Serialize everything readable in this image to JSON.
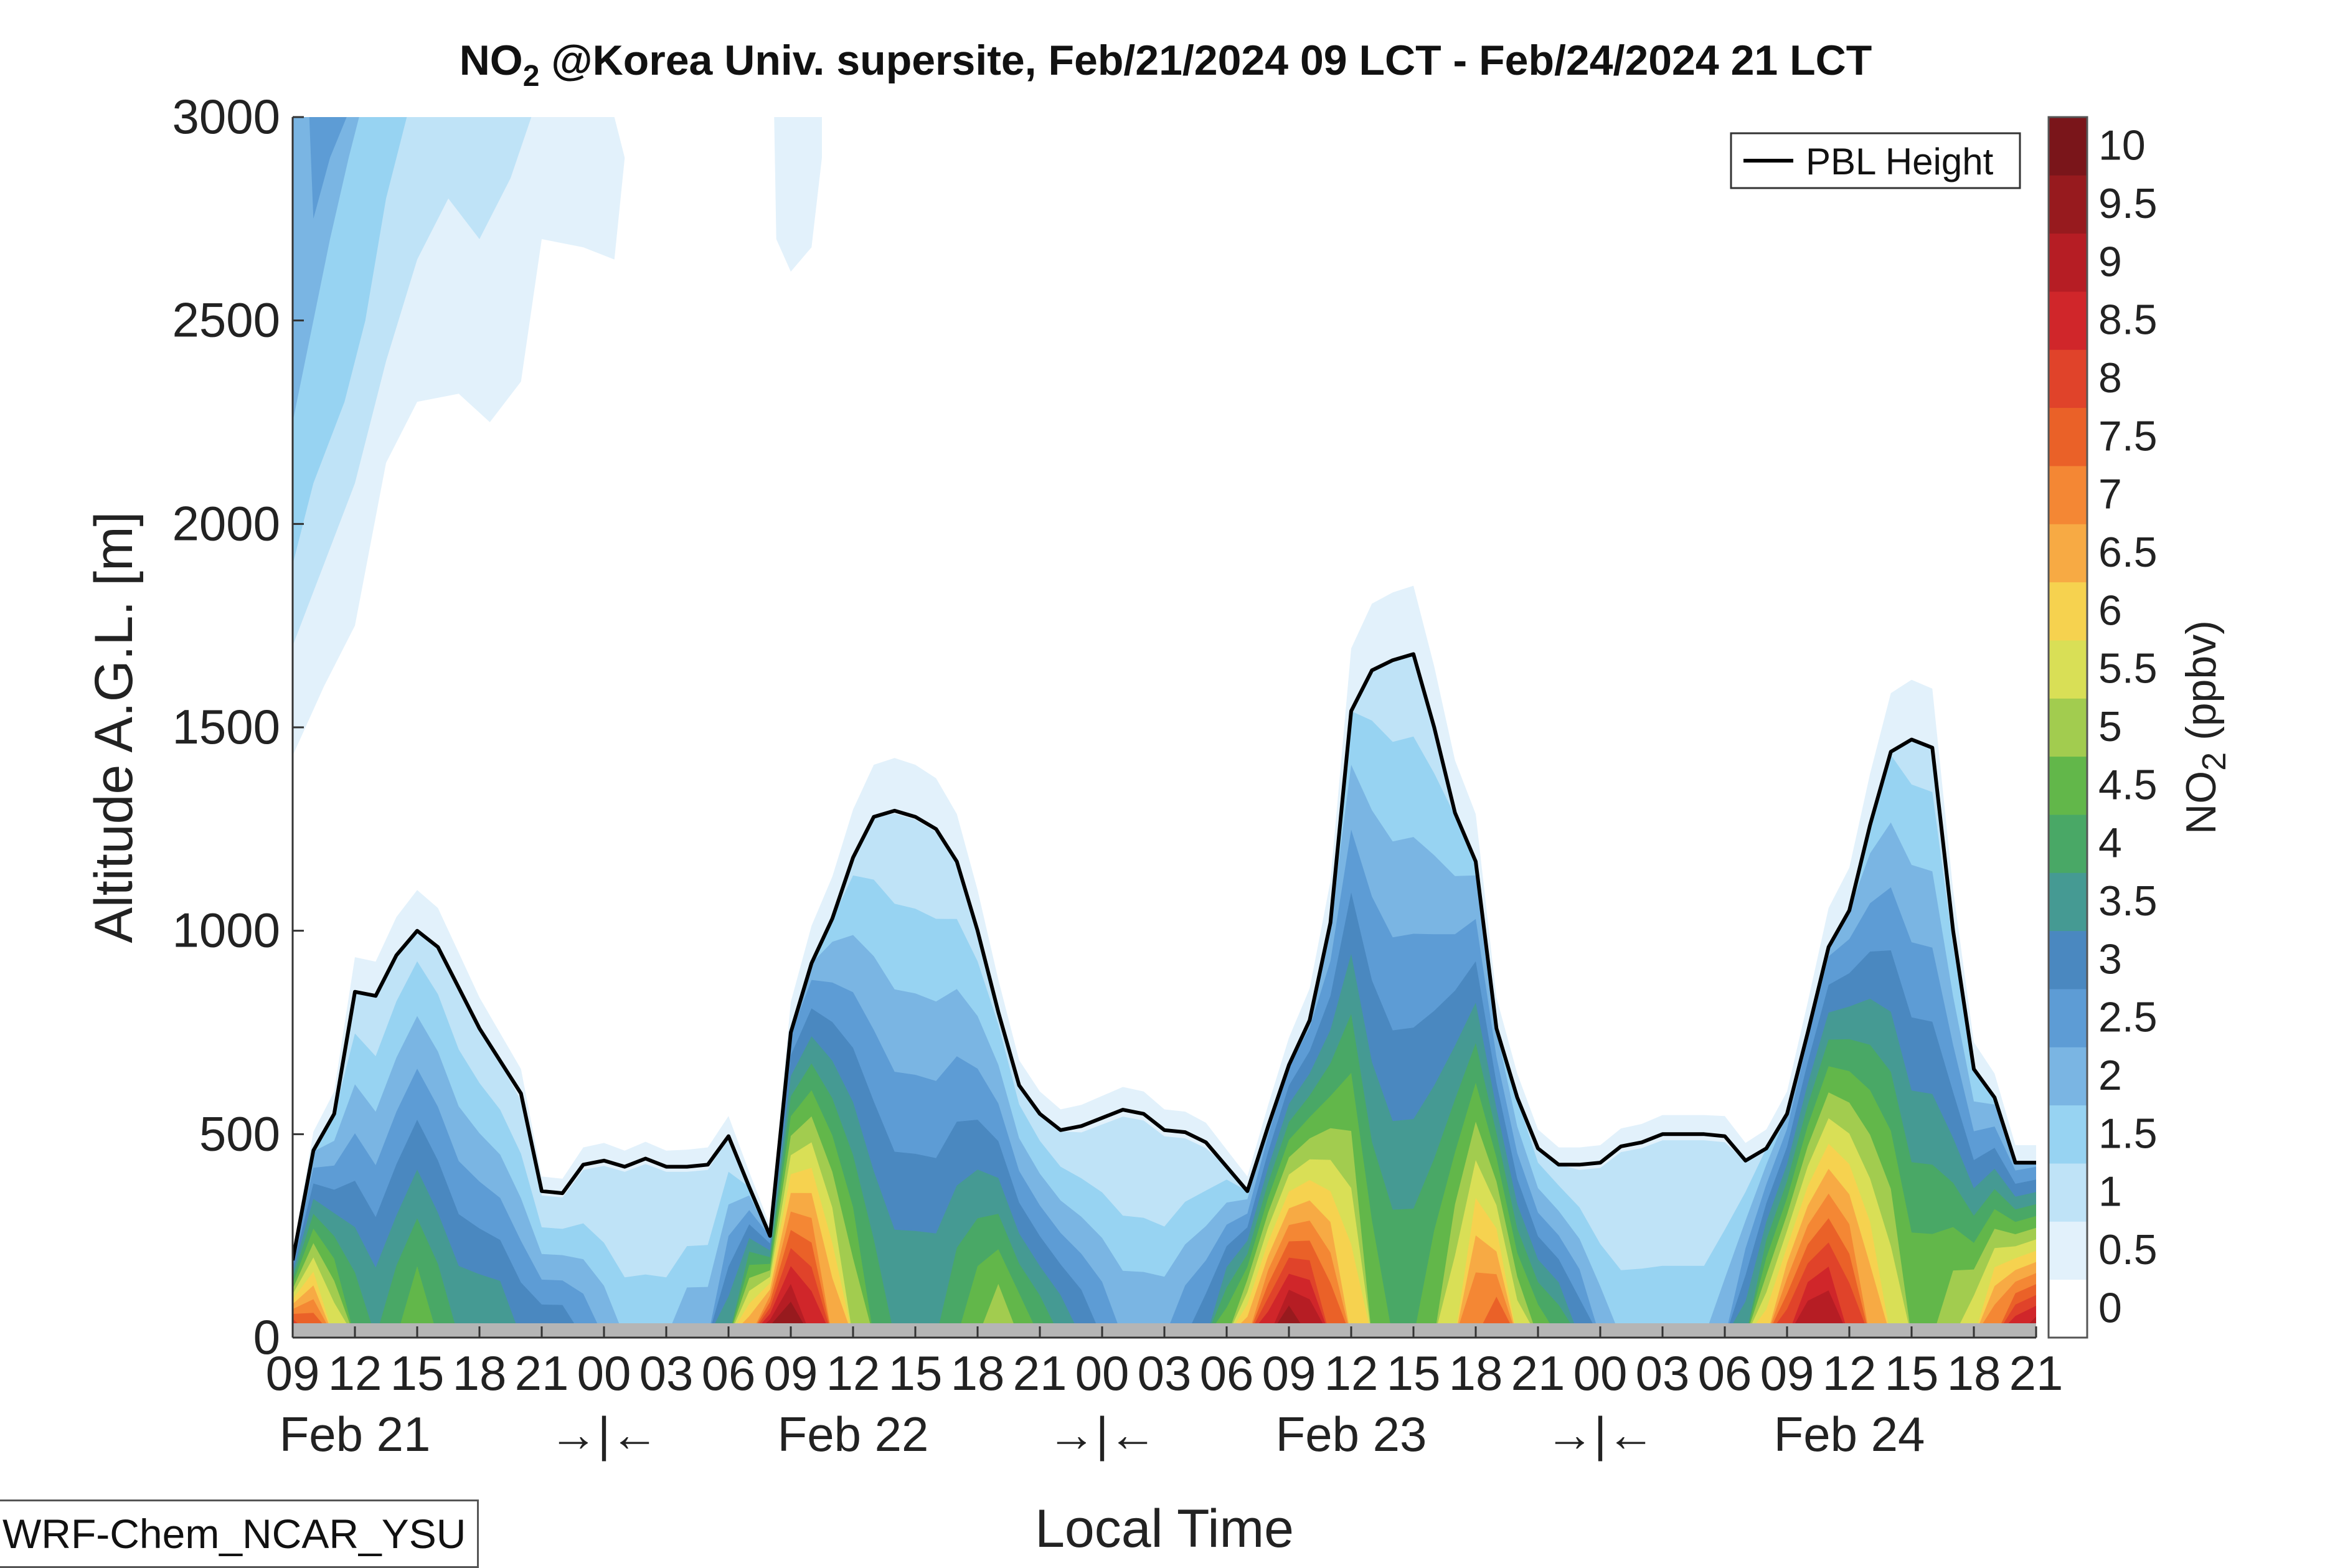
{
  "title": {
    "prefix": "NO",
    "subscript": "2",
    "suffix": " @Korea Univ. supersite, Feb/21/2024 09 LCT - Feb/24/2024 21 LCT"
  },
  "model_label": "WRF-Chem_NCAR_YSU",
  "legend": {
    "label": "PBL Height",
    "placement": "top-right"
  },
  "colorbar": {
    "label_prefix": "NO",
    "label_subscript": "2",
    "label_suffix": " (ppbv)",
    "tick_labels": [
      "0",
      "0.5",
      "1",
      "1.5",
      "2",
      "2.5",
      "3",
      "3.5",
      "4",
      "4.5",
      "5",
      "5.5",
      "6",
      "6.5",
      "7",
      "7.5",
      "8",
      "8.5",
      "9",
      "9.5",
      "10"
    ],
    "colors": [
      "#ffffff",
      "#e2f1fb",
      "#bfe3f7",
      "#97d3f2",
      "#7ab5e3",
      "#5d9cd5",
      "#4a88c0",
      "#459a93",
      "#49a866",
      "#62b74a",
      "#a2cc4f",
      "#d9df56",
      "#f6d24f",
      "#f7aa44",
      "#f48734",
      "#ea6128",
      "#e0432a",
      "#d0262a",
      "#b61d24",
      "#971a1e",
      "#7a151a"
    ]
  },
  "chart_data": {
    "type": "heatmap",
    "title": "NO2 @Korea Univ. supersite, Feb/21/2024 09 LCT - Feb/24/2024 21 LCT",
    "xlabel": "Local Time",
    "ylabel": "Altitude A.G.L. [m]",
    "xlim": [
      0,
      84
    ],
    "ylim": [
      0,
      3000
    ],
    "y_ticks": [
      0,
      500,
      1000,
      1500,
      2000,
      2500,
      3000
    ],
    "x_tick_labels": [
      "09",
      "12",
      "15",
      "18",
      "21",
      "00",
      "03",
      "06",
      "09",
      "12",
      "15",
      "18",
      "21",
      "00",
      "03",
      "06",
      "09",
      "12",
      "15",
      "18",
      "21",
      "00",
      "03",
      "06",
      "09",
      "12",
      "15",
      "18",
      "21"
    ],
    "x_tick_hours": [
      0,
      3,
      6,
      9,
      12,
      15,
      18,
      21,
      24,
      27,
      30,
      33,
      36,
      39,
      42,
      45,
      48,
      51,
      54,
      57,
      60,
      63,
      66,
      69,
      72,
      75,
      78,
      81,
      84
    ],
    "date_labels": [
      {
        "text": "Feb 21",
        "hour": 3
      },
      {
        "text": "Feb 22",
        "hour": 27
      },
      {
        "text": "Feb 23",
        "hour": 51
      },
      {
        "text": "Feb 24",
        "hour": 75
      }
    ],
    "night_markers": [
      {
        "text": "→|←",
        "hour": 15
      },
      {
        "text": "→|←",
        "hour": 39
      },
      {
        "text": "→|←",
        "hour": 63
      }
    ],
    "pbl_height": {
      "name": "PBL Height",
      "hours": [
        0,
        1,
        2,
        3,
        4,
        5,
        6,
        7,
        8,
        9,
        10,
        11,
        12,
        13,
        14,
        15,
        16,
        17,
        18,
        19,
        20,
        21,
        22,
        23,
        24,
        25,
        26,
        27,
        28,
        29,
        30,
        31,
        32,
        33,
        34,
        35,
        36,
        37,
        38,
        39,
        40,
        41,
        42,
        43,
        44,
        45,
        46,
        47,
        48,
        49,
        50,
        51,
        52,
        53,
        54,
        55,
        56,
        57,
        58,
        59,
        60,
        61,
        62,
        63,
        64,
        65,
        66,
        67,
        68,
        69,
        70,
        71,
        72,
        73,
        74,
        75,
        76,
        77,
        78,
        79,
        80,
        81,
        82,
        83,
        84
      ],
      "values": [
        190,
        460,
        550,
        850,
        840,
        940,
        1000,
        960,
        860,
        760,
        680,
        600,
        360,
        355,
        425,
        435,
        420,
        440,
        420,
        420,
        425,
        495,
        370,
        250,
        750,
        920,
        1030,
        1180,
        1280,
        1295,
        1280,
        1250,
        1170,
        1000,
        800,
        620,
        550,
        510,
        520,
        540,
        560,
        550,
        510,
        505,
        480,
        420,
        360,
        520,
        670,
        780,
        1020,
        1540,
        1640,
        1665,
        1680,
        1500,
        1290,
        1170,
        760,
        590,
        465,
        425,
        425,
        430,
        470,
        480,
        500,
        500,
        500,
        495,
        435,
        465,
        550,
        750,
        960,
        1050,
        1260,
        1440,
        1470,
        1450,
        1000,
        660,
        590,
        430,
        430
      ]
    },
    "no2_surface_max_ppbv": [
      9.5,
      8,
      6,
      4.5,
      4,
      4.5,
      5,
      4.5,
      4,
      4,
      4,
      3.5,
      3.5,
      3.5,
      3,
      2.5,
      2,
      2,
      2,
      2.5,
      2.5,
      4,
      7,
      10,
      10,
      9,
      7,
      5.5,
      4.5,
      4,
      4,
      4,
      4.5,
      5,
      5.5,
      5,
      4.5,
      4,
      3.5,
      3,
      2.5,
      2.5,
      2.5,
      3,
      3.5,
      5,
      7,
      9,
      10,
      9.5,
      8,
      6.5,
      5,
      4.5,
      4.5,
      5,
      6,
      7.5,
      8,
      6,
      5,
      4.5,
      3.5,
      2.5,
      2,
      2,
      2,
      2,
      2,
      2.5,
      4,
      6.5,
      8.5,
      9.5,
      9.5,
      8.5,
      7,
      6,
      5,
      5,
      5.5,
      6,
      7.5,
      9,
      9.5
    ]
  }
}
